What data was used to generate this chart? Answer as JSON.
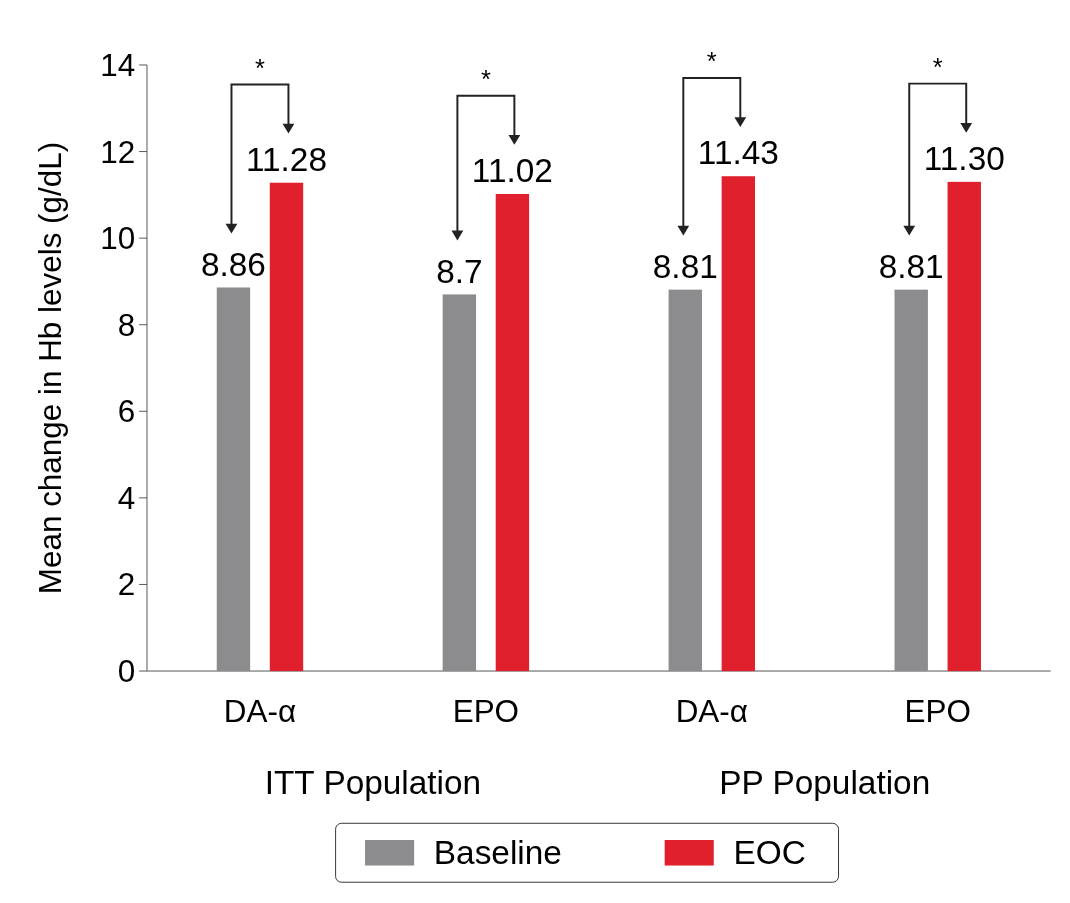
{
  "chart_data": {
    "type": "bar",
    "ylabel": "Mean change in Hb levels (g/dL)",
    "categories": [
      "DA-α",
      "EPO",
      "DA-α",
      "EPO"
    ],
    "series": [
      {
        "name": "Baseline",
        "color": "#8c8c8e",
        "values": [
          8.86,
          8.7,
          8.81,
          8.81
        ],
        "value_labels": [
          "8.86",
          "8.7",
          "8.81",
          "8.81"
        ]
      },
      {
        "name": "EOC",
        "color": "#e0202c",
        "values": [
          11.28,
          11.02,
          11.43,
          11.3
        ],
        "value_labels": [
          "11.28",
          "11.02",
          "11.43",
          "11.30"
        ]
      }
    ],
    "ylim": [
      0,
      14
    ],
    "yticks": [
      0,
      2,
      4,
      6,
      8,
      10,
      12,
      14
    ],
    "grid": false,
    "legend": "bottom",
    "annotations": [
      "*",
      "*",
      "*",
      "*",
      "ITT Population",
      "PP Population"
    ]
  }
}
